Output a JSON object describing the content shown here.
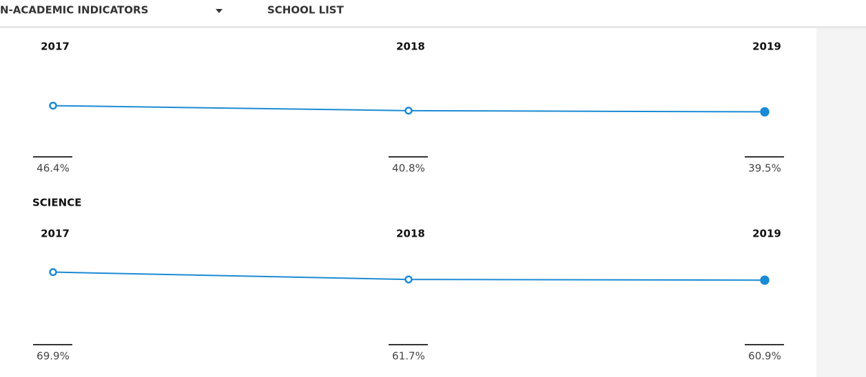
{
  "nav": {
    "items": [
      "N-ACADEMIC INDICATORS",
      "SCHOOL LIST"
    ]
  },
  "chart_data": [
    {
      "type": "line",
      "categories": [
        "2017",
        "2018",
        "2019"
      ],
      "values": [
        46.4,
        40.8,
        39.5
      ],
      "value_labels": [
        "46.4%",
        "40.8%",
        "39.5%"
      ],
      "color": "#1a8ad4"
    },
    {
      "type": "line",
      "title": "SCIENCE",
      "categories": [
        "2017",
        "2018",
        "2019"
      ],
      "values": [
        69.9,
        61.7,
        60.9
      ],
      "value_labels": [
        "69.9%",
        "61.7%",
        "60.9%"
      ],
      "color": "#1a8ad4"
    }
  ]
}
